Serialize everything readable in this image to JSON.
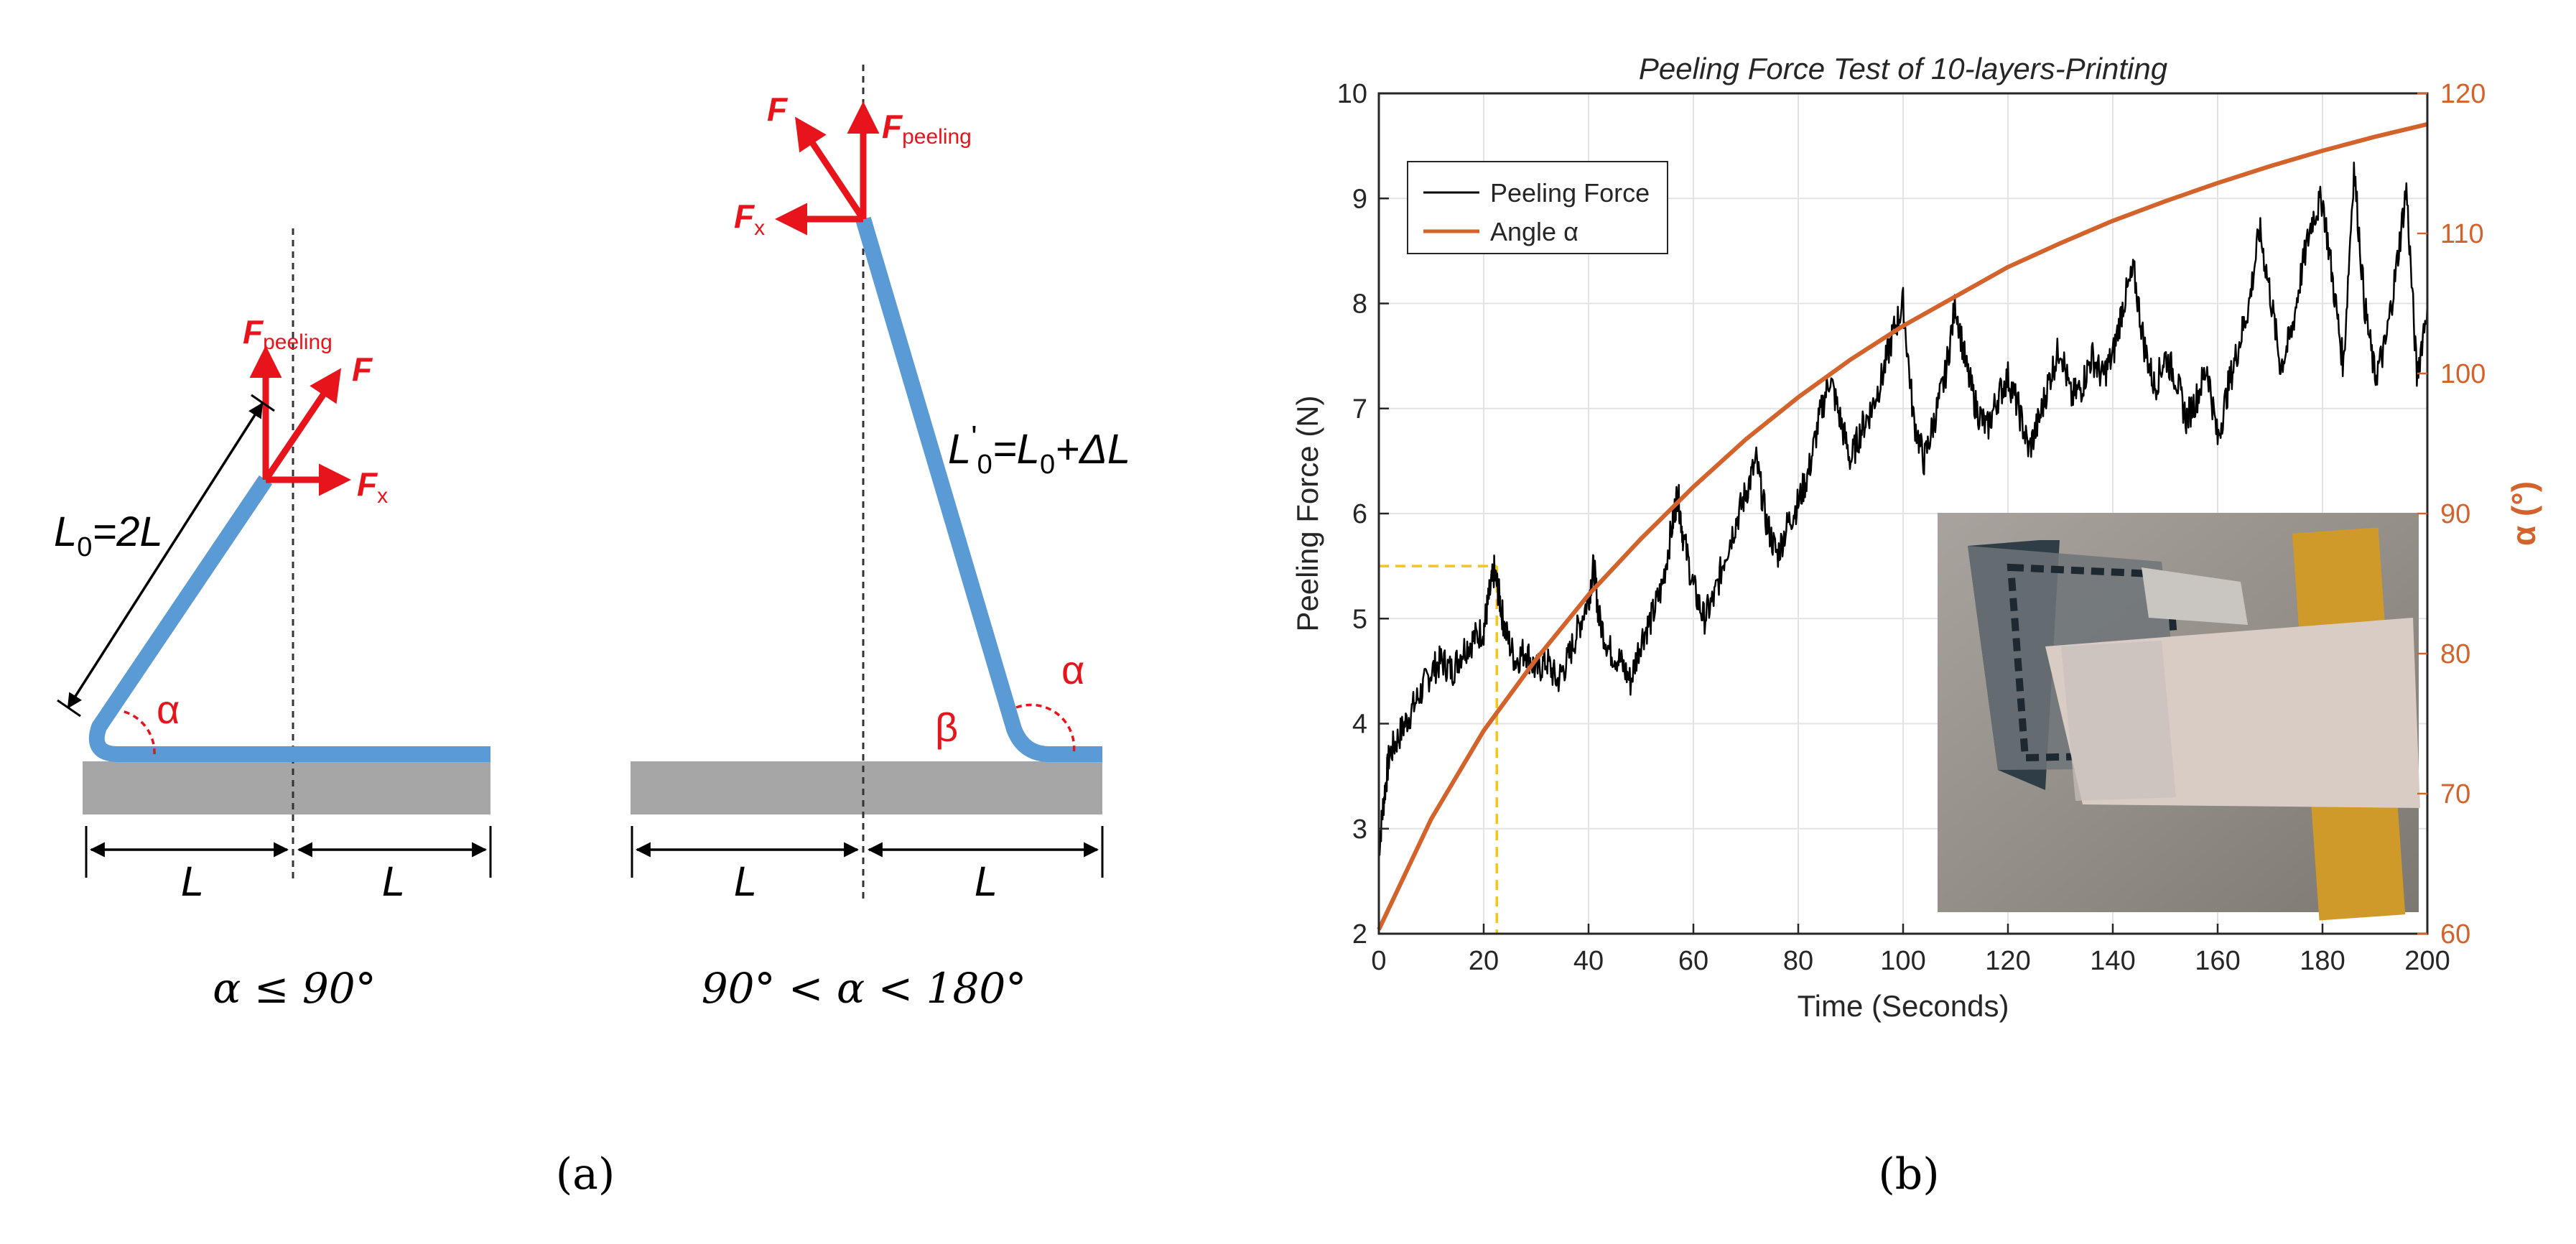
{
  "figure": {
    "panel_a_label": "(a)",
    "panel_b_label": "(b)"
  },
  "diagram_left": {
    "f_peeling": "F",
    "f_peeling_sub": "peeling",
    "f": "F",
    "fx": "F",
    "fx_sub": "x",
    "length_label": "L",
    "length_label_sub": "0",
    "length_label_rest": "=2L",
    "alpha": "α",
    "seg_left": "L",
    "seg_right": "L",
    "caption": "α ≤ 90°"
  },
  "diagram_right": {
    "f": "F",
    "f_peeling": "F",
    "f_peeling_sub": "peeling",
    "fx": "F",
    "fx_sub": "x",
    "length_label": "L",
    "length_prime": "ʹ",
    "length_label_sub": "0",
    "length_label_mid": "=L",
    "length_label_sub2": "0",
    "length_label_rest": "+ΔL",
    "alpha": "α",
    "beta": "β",
    "seg_left": "L",
    "seg_right": "L",
    "caption": "90° < α < 180°"
  },
  "chart_data": {
    "type": "line",
    "title": "Peeling Force Test of 10-layers-Printing",
    "xlabel": "Time (Seconds)",
    "ylabel": "Peeling Force (N)",
    "y2label": "α (°)",
    "xlim": [
      0,
      200
    ],
    "ylim": [
      2,
      10
    ],
    "y2lim": [
      60,
      120
    ],
    "xticks": [
      "0",
      "20",
      "40",
      "60",
      "80",
      "100",
      "120",
      "140",
      "160",
      "180",
      "200"
    ],
    "yticks": [
      "2",
      "3",
      "4",
      "5",
      "6",
      "7",
      "8",
      "9",
      "10"
    ],
    "y2ticks": [
      "60",
      "70",
      "80",
      "90",
      "100",
      "110",
      "120"
    ],
    "grid": true,
    "legend_position": "top-left",
    "colors": {
      "force": "#000000",
      "angle": "#d4622b",
      "guide": "#f5c518",
      "axis_right": "#d4622b"
    },
    "series": [
      {
        "name": "Peeling Force",
        "axis": "left",
        "x": [
          0,
          1,
          2,
          4,
          6,
          8,
          10,
          12,
          14,
          16,
          18,
          20,
          21,
          22,
          23,
          24,
          26,
          28,
          30,
          32,
          34,
          36,
          38,
          40,
          41,
          42,
          44,
          46,
          48,
          50,
          52,
          54,
          56,
          57,
          58,
          60,
          62,
          64,
          66,
          68,
          70,
          72,
          74,
          76,
          78,
          80,
          82,
          84,
          86,
          88,
          90,
          92,
          94,
          96,
          98,
          100,
          102,
          104,
          106,
          108,
          110,
          112,
          114,
          116,
          118,
          120,
          122,
          124,
          126,
          128,
          130,
          132,
          134,
          136,
          138,
          140,
          142,
          144,
          146,
          148,
          150,
          152,
          154,
          156,
          158,
          160,
          162,
          164,
          166,
          168,
          170,
          172,
          174,
          176,
          178,
          180,
          182,
          184,
          186,
          188,
          190,
          192,
          194,
          196,
          198,
          200
        ],
        "values": [
          2.8,
          3.3,
          3.7,
          3.9,
          4.1,
          4.3,
          4.5,
          4.6,
          4.5,
          4.7,
          4.8,
          4.9,
          5.2,
          5.45,
          5.2,
          4.9,
          4.6,
          4.7,
          4.5,
          4.6,
          4.4,
          4.6,
          4.9,
          5.2,
          5.5,
          5.0,
          4.7,
          4.6,
          4.4,
          4.8,
          5.0,
          5.3,
          5.9,
          6.2,
          5.8,
          5.3,
          5.0,
          5.2,
          5.6,
          5.9,
          6.2,
          6.5,
          5.9,
          5.6,
          5.9,
          6.1,
          6.4,
          6.9,
          7.3,
          6.9,
          6.5,
          6.8,
          7.0,
          7.3,
          7.7,
          8.0,
          6.9,
          6.5,
          6.9,
          7.3,
          8.0,
          7.4,
          7.0,
          6.8,
          7.1,
          7.3,
          7.0,
          6.6,
          6.9,
          7.3,
          7.6,
          7.1,
          7.2,
          7.5,
          7.3,
          7.5,
          8.0,
          8.3,
          7.6,
          7.2,
          7.5,
          7.3,
          6.9,
          7.1,
          7.4,
          6.7,
          7.2,
          7.6,
          8.0,
          8.7,
          8.1,
          7.4,
          7.7,
          8.3,
          8.8,
          9.0,
          8.2,
          7.4,
          9.3,
          8.0,
          7.3,
          7.6,
          8.3,
          9.1,
          7.3,
          8.0
        ]
      },
      {
        "name": "Angle α",
        "axis": "right",
        "x": [
          0,
          10,
          20,
          30,
          40,
          50,
          60,
          70,
          80,
          90,
          100,
          110,
          120,
          130,
          140,
          150,
          160,
          170,
          180,
          190,
          200
        ],
        "values": [
          60.3,
          68.2,
          74.5,
          79.6,
          84.2,
          88.2,
          91.9,
          95.3,
          98.3,
          101.0,
          103.4,
          105.5,
          107.6,
          109.3,
          110.9,
          112.3,
          113.6,
          114.8,
          115.9,
          116.9,
          117.8
        ]
      }
    ],
    "guides": [
      {
        "x": 22.5,
        "y": 5.5
      }
    ]
  },
  "legend": {
    "force_label": "Peeling Force",
    "angle_label": "Angle α"
  }
}
